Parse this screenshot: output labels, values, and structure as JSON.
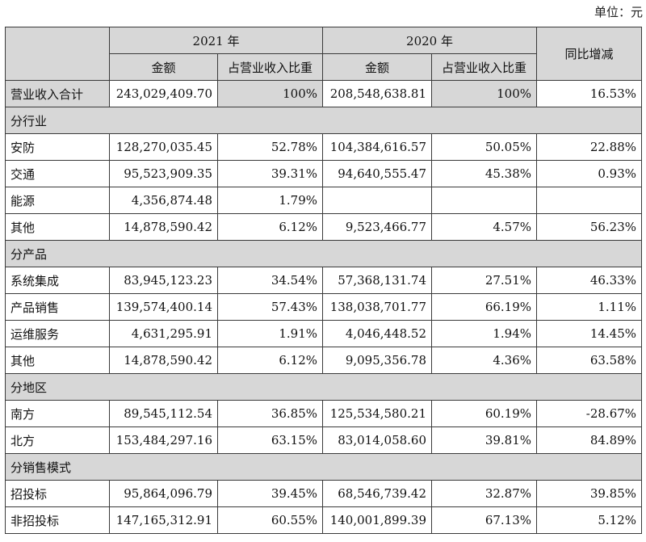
{
  "unit_label": "单位：元",
  "header": {
    "year_2021": "2021 年",
    "year_2020": "2020 年",
    "amount": "金额",
    "ratio": "占营业收入比重",
    "yoy": "同比增减"
  },
  "total_row": {
    "label": "营业收入合计",
    "amount_2021": "243,029,409.70",
    "ratio_2021": "100%",
    "amount_2020": "208,548,638.81",
    "ratio_2020": "100%",
    "yoy": "16.53%"
  },
  "sections": [
    {
      "title": "分行业",
      "rows": [
        {
          "label": "安防",
          "amount_2021": "128,270,035.45",
          "ratio_2021": "52.78%",
          "amount_2020": "104,384,616.57",
          "ratio_2020": "50.05%",
          "yoy": "22.88%"
        },
        {
          "label": "交通",
          "amount_2021": "95,523,909.35",
          "ratio_2021": "39.31%",
          "amount_2020": "94,640,555.47",
          "ratio_2020": "45.38%",
          "yoy": "0.93%"
        },
        {
          "label": "能源",
          "amount_2021": "4,356,874.48",
          "ratio_2021": "1.79%",
          "amount_2020": "",
          "ratio_2020": "",
          "yoy": ""
        },
        {
          "label": "其他",
          "amount_2021": "14,878,590.42",
          "ratio_2021": "6.12%",
          "amount_2020": "9,523,466.77",
          "ratio_2020": "4.57%",
          "yoy": "56.23%"
        }
      ]
    },
    {
      "title": "分产品",
      "rows": [
        {
          "label": "系统集成",
          "amount_2021": "83,945,123.23",
          "ratio_2021": "34.54%",
          "amount_2020": "57,368,131.74",
          "ratio_2020": "27.51%",
          "yoy": "46.33%"
        },
        {
          "label": "产品销售",
          "amount_2021": "139,574,400.14",
          "ratio_2021": "57.43%",
          "amount_2020": "138,038,701.77",
          "ratio_2020": "66.19%",
          "yoy": "1.11%"
        },
        {
          "label": "运维服务",
          "amount_2021": "4,631,295.91",
          "ratio_2021": "1.91%",
          "amount_2020": "4,046,448.52",
          "ratio_2020": "1.94%",
          "yoy": "14.45%"
        },
        {
          "label": "其他",
          "amount_2021": "14,878,590.42",
          "ratio_2021": "6.12%",
          "amount_2020": "9,095,356.78",
          "ratio_2020": "4.36%",
          "yoy": "63.58%"
        }
      ]
    },
    {
      "title": "分地区",
      "rows": [
        {
          "label": "南方",
          "amount_2021": "89,545,112.54",
          "ratio_2021": "36.85%",
          "amount_2020": "125,534,580.21",
          "ratio_2020": "60.19%",
          "yoy": "-28.67%"
        },
        {
          "label": "北方",
          "amount_2021": "153,484,297.16",
          "ratio_2021": "63.15%",
          "amount_2020": "83,014,058.60",
          "ratio_2020": "39.81%",
          "yoy": "84.89%"
        }
      ]
    },
    {
      "title": "分销售模式",
      "rows": [
        {
          "label": "招投标",
          "amount_2021": "95,864,096.79",
          "ratio_2021": "39.45%",
          "amount_2020": "68,546,739.42",
          "ratio_2020": "32.87%",
          "yoy": "39.85%"
        },
        {
          "label": "非招投标",
          "amount_2021": "147,165,312.91",
          "ratio_2021": "60.55%",
          "amount_2020": "140,001,899.39",
          "ratio_2020": "67.13%",
          "yoy": "5.12%"
        }
      ]
    }
  ]
}
